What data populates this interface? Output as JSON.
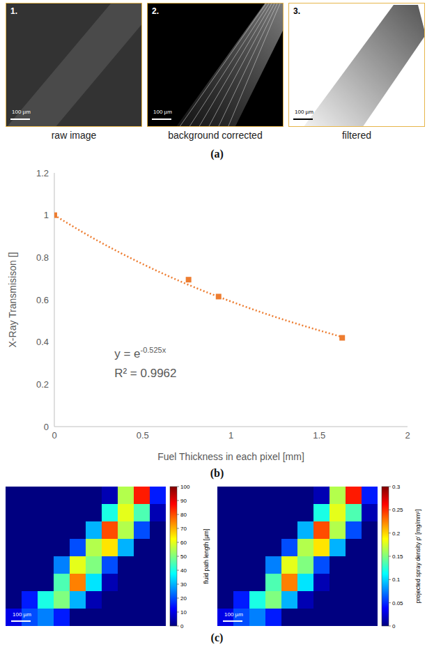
{
  "panel_labels": [
    "(a)",
    "(b)",
    "(c)"
  ],
  "images": [
    {
      "number": "1.",
      "caption": "raw image",
      "scale_bar": "100 µm"
    },
    {
      "number": "2.",
      "caption": "background corrected",
      "scale_bar": "100 µm"
    },
    {
      "number": "3.",
      "caption": "filtered",
      "scale_bar": "100 µm"
    }
  ],
  "chart_data": [
    {
      "type": "scatter",
      "x_label": "Fuel Thickness in each pixel [mm]",
      "y_label": "X-Ray Transmisison []",
      "xlim": [
        0,
        2
      ],
      "xticks": [
        0,
        0.5,
        1,
        1.5,
        2
      ],
      "ylim": [
        0,
        1.2
      ],
      "yticks": [
        0,
        0.2,
        0.4,
        0.6,
        0.8,
        1,
        1.2
      ],
      "grid": false,
      "annotations": [
        {
          "text": "y = e",
          "superscript": "-0.525x"
        },
        {
          "text": "R² = 0.9962"
        }
      ],
      "series": [
        {
          "type": "scatter",
          "color": "#ed7d31",
          "marker": "square",
          "x": [
            0,
            0.76,
            0.93,
            1.63
          ],
          "values": [
            1,
            0.695,
            0.615,
            0.42
          ]
        },
        {
          "type": "line",
          "color": "#ed7d31",
          "line_style": "dotted",
          "x": [
            0,
            0.25,
            0.5,
            0.75,
            1,
            1.25,
            1.5,
            1.63
          ],
          "values": [
            1,
            0.877,
            0.769,
            0.674,
            0.592,
            0.519,
            0.455,
            0.424
          ]
        }
      ]
    },
    {
      "type": "heatmap",
      "scale_bar": "100 µm",
      "colorbar": {
        "label": "fluid path length [µm]",
        "range": [
          0,
          100
        ],
        "ticks": [
          0,
          10,
          20,
          30,
          40,
          50,
          60,
          70,
          80,
          90,
          100
        ]
      },
      "cells": [
        [
          0,
          0,
          0,
          0,
          0,
          0,
          5,
          55,
          85,
          15
        ],
        [
          0,
          0,
          0,
          0,
          0,
          0,
          40,
          60,
          45,
          5
        ],
        [
          0,
          0,
          0,
          0,
          0,
          30,
          80,
          55,
          20,
          0
        ],
        [
          0,
          0,
          0,
          0,
          20,
          55,
          65,
          30,
          0,
          0
        ],
        [
          0,
          0,
          0,
          25,
          60,
          50,
          20,
          0,
          0,
          0
        ],
        [
          0,
          0,
          0,
          45,
          75,
          35,
          5,
          0,
          0,
          0
        ],
        [
          0,
          15,
          40,
          50,
          30,
          5,
          0,
          0,
          0,
          0
        ],
        [
          10,
          20,
          25,
          15,
          0,
          0,
          0,
          0,
          0,
          0
        ]
      ]
    },
    {
      "type": "heatmap",
      "scale_bar": "100 µm",
      "colorbar": {
        "label": "projected spray density ρ' [mg/mm²]",
        "range": [
          0,
          0.3
        ],
        "ticks": [
          0,
          0.05,
          0.1,
          0.15,
          0.2,
          0.25,
          0.3
        ]
      },
      "cells": [
        [
          0,
          0,
          0,
          0,
          0,
          0,
          0.015,
          0.165,
          0.255,
          0.045
        ],
        [
          0,
          0,
          0,
          0,
          0,
          0,
          0.12,
          0.18,
          0.135,
          0.015
        ],
        [
          0,
          0,
          0,
          0,
          0,
          0.09,
          0.24,
          0.165,
          0.06,
          0
        ],
        [
          0,
          0,
          0,
          0,
          0.06,
          0.165,
          0.195,
          0.09,
          0,
          0
        ],
        [
          0,
          0,
          0,
          0.075,
          0.18,
          0.15,
          0.06,
          0,
          0,
          0
        ],
        [
          0,
          0,
          0,
          0.135,
          0.225,
          0.105,
          0.015,
          0,
          0,
          0
        ],
        [
          0,
          0.045,
          0.12,
          0.15,
          0.09,
          0.015,
          0,
          0,
          0,
          0
        ],
        [
          0.03,
          0.06,
          0.075,
          0.045,
          0,
          0,
          0,
          0,
          0,
          0
        ]
      ]
    }
  ]
}
